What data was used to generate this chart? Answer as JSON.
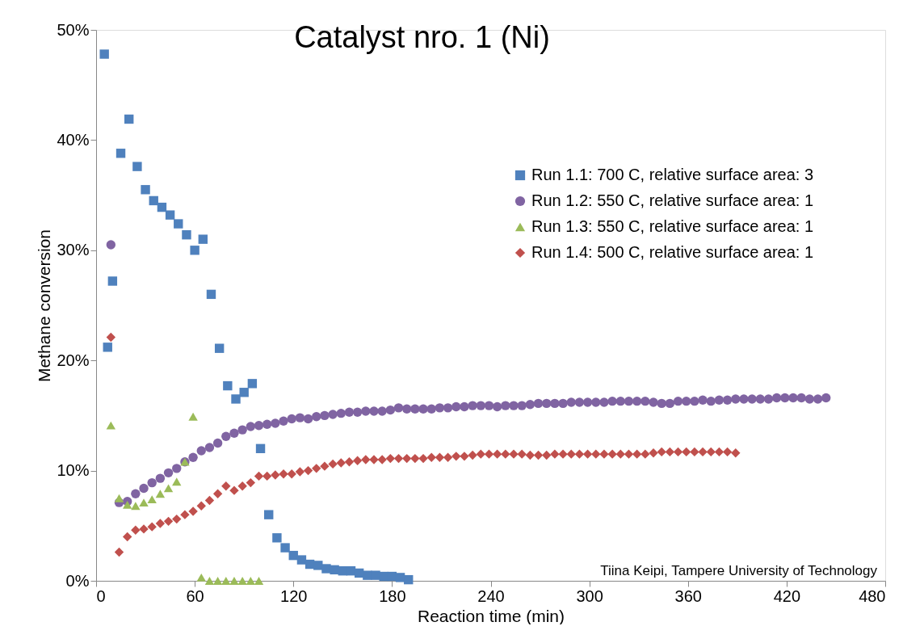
{
  "chart_data": {
    "type": "scatter",
    "title": "Catalyst nro. 1 (Ni)",
    "xlabel": "Reaction time (min)",
    "ylabel": "Methane conversion",
    "xlim": [
      0,
      480
    ],
    "xticks": [
      0,
      60,
      120,
      180,
      240,
      300,
      360,
      420,
      480
    ],
    "ylim": [
      0,
      50
    ],
    "yticks": [
      {
        "value": 0,
        "label": "0%"
      },
      {
        "value": 10,
        "label": "10%"
      },
      {
        "value": 20,
        "label": "20%"
      },
      {
        "value": 30,
        "label": "30%"
      },
      {
        "value": 40,
        "label": "40%"
      },
      {
        "value": 50,
        "label": "50%"
      }
    ],
    "grid": false,
    "legend": "top right",
    "annotations": [
      "Tiina Keipi, Tampere University of Technology"
    ],
    "series": [
      {
        "name": "Run 1.1: 700 C, relative surface area: 3",
        "color": "#4f81bd",
        "marker": "square",
        "x": [
          5,
          7,
          10,
          15,
          20,
          25,
          30,
          35,
          40,
          45,
          50,
          55,
          60,
          65,
          70,
          75,
          80,
          85,
          90,
          95,
          100,
          105,
          110,
          115,
          120,
          125,
          130,
          135,
          140,
          145,
          150,
          155,
          160,
          165,
          170,
          175,
          180,
          185,
          190
        ],
        "values": [
          47.8,
          21.2,
          27.2,
          38.8,
          41.9,
          37.6,
          35.5,
          34.5,
          33.9,
          33.2,
          32.4,
          31.4,
          30.0,
          31.0,
          26.0,
          21.1,
          17.7,
          16.5,
          17.1,
          17.9,
          12.0,
          6.0,
          3.9,
          3.0,
          2.3,
          1.9,
          1.5,
          1.4,
          1.1,
          1.0,
          0.9,
          0.9,
          0.7,
          0.5,
          0.5,
          0.4,
          0.4,
          0.3,
          0.1
        ]
      },
      {
        "name": "Run 1.2: 550 C, relative surface area: 1",
        "color": "#8064a2",
        "marker": "circle",
        "x": [
          9,
          14,
          19,
          24,
          29,
          34,
          39,
          44,
          49,
          54,
          59,
          64,
          69,
          74,
          79,
          84,
          89,
          94,
          99,
          104,
          109,
          114,
          119,
          124,
          129,
          134,
          139,
          144,
          149,
          154,
          159,
          164,
          169,
          174,
          179,
          184,
          189,
          194,
          199,
          204,
          209,
          214,
          219,
          224,
          229,
          234,
          239,
          244,
          249,
          254,
          259,
          264,
          269,
          274,
          279,
          284,
          289,
          294,
          299,
          304,
          309,
          314,
          319,
          324,
          329,
          334,
          339,
          344,
          349,
          354,
          359,
          364,
          369,
          374,
          379,
          384,
          389,
          394,
          399,
          404,
          409,
          414,
          419,
          424,
          429,
          434,
          439,
          444
        ],
        "values": [
          30.5,
          7.1,
          7.2,
          7.9,
          8.4,
          8.9,
          9.3,
          9.8,
          10.2,
          10.8,
          11.2,
          11.8,
          12.1,
          12.5,
          13.1,
          13.4,
          13.7,
          14.0,
          14.1,
          14.2,
          14.3,
          14.5,
          14.7,
          14.8,
          14.7,
          14.9,
          15.0,
          15.1,
          15.2,
          15.3,
          15.3,
          15.4,
          15.4,
          15.4,
          15.5,
          15.7,
          15.6,
          15.6,
          15.6,
          15.6,
          15.7,
          15.7,
          15.8,
          15.8,
          15.9,
          15.9,
          15.9,
          15.8,
          15.9,
          15.9,
          15.9,
          16.0,
          16.1,
          16.1,
          16.1,
          16.1,
          16.2,
          16.2,
          16.2,
          16.2,
          16.2,
          16.3,
          16.3,
          16.3,
          16.3,
          16.3,
          16.2,
          16.1,
          16.1,
          16.3,
          16.3,
          16.3,
          16.4,
          16.3,
          16.4,
          16.4,
          16.5,
          16.5,
          16.5,
          16.5,
          16.5,
          16.6,
          16.6,
          16.6,
          16.6,
          16.5,
          16.5,
          16.6
        ]
      },
      {
        "name": "Run 1.3: 550 C, relative surface area: 1",
        "color": "#9bbb59",
        "marker": "triangle",
        "x": [
          9,
          14,
          19,
          24,
          29,
          34,
          39,
          44,
          49,
          54,
          59,
          64,
          69,
          74,
          79,
          84,
          89,
          94,
          99
        ],
        "values": [
          14.1,
          7.5,
          6.9,
          6.8,
          7.1,
          7.4,
          7.9,
          8.4,
          9.0,
          10.8,
          14.9,
          0.3,
          0,
          0,
          0,
          0,
          0,
          0,
          0
        ]
      },
      {
        "name": "Run 1.4: 500 C, relative surface area: 1",
        "color": "#c0504d",
        "marker": "diamond",
        "x": [
          9,
          14,
          19,
          24,
          29,
          34,
          39,
          44,
          49,
          54,
          59,
          64,
          69,
          74,
          79,
          84,
          89,
          94,
          99,
          104,
          109,
          114,
          119,
          124,
          129,
          134,
          139,
          144,
          149,
          154,
          159,
          164,
          169,
          174,
          179,
          184,
          189,
          194,
          199,
          204,
          209,
          214,
          219,
          224,
          229,
          234,
          239,
          244,
          249,
          254,
          259,
          264,
          269,
          274,
          279,
          284,
          289,
          294,
          299,
          304,
          309,
          314,
          319,
          324,
          329,
          334,
          339,
          344,
          349,
          354,
          359,
          364,
          369,
          374,
          379,
          384,
          389
        ],
        "values": [
          22.1,
          2.6,
          4.0,
          4.6,
          4.7,
          4.9,
          5.2,
          5.4,
          5.6,
          6.0,
          6.3,
          6.8,
          7.3,
          7.9,
          8.6,
          8.2,
          8.6,
          8.9,
          9.5,
          9.5,
          9.6,
          9.7,
          9.7,
          9.9,
          10.0,
          10.2,
          10.4,
          10.6,
          10.7,
          10.8,
          10.9,
          11.0,
          11.0,
          11.0,
          11.1,
          11.1,
          11.1,
          11.1,
          11.1,
          11.2,
          11.2,
          11.2,
          11.3,
          11.3,
          11.4,
          11.5,
          11.5,
          11.5,
          11.5,
          11.5,
          11.5,
          11.4,
          11.4,
          11.4,
          11.5,
          11.5,
          11.5,
          11.5,
          11.5,
          11.5,
          11.5,
          11.5,
          11.5,
          11.5,
          11.5,
          11.5,
          11.6,
          11.7,
          11.7,
          11.7,
          11.7,
          11.7,
          11.7,
          11.7,
          11.7,
          11.7,
          11.6
        ]
      }
    ]
  }
}
